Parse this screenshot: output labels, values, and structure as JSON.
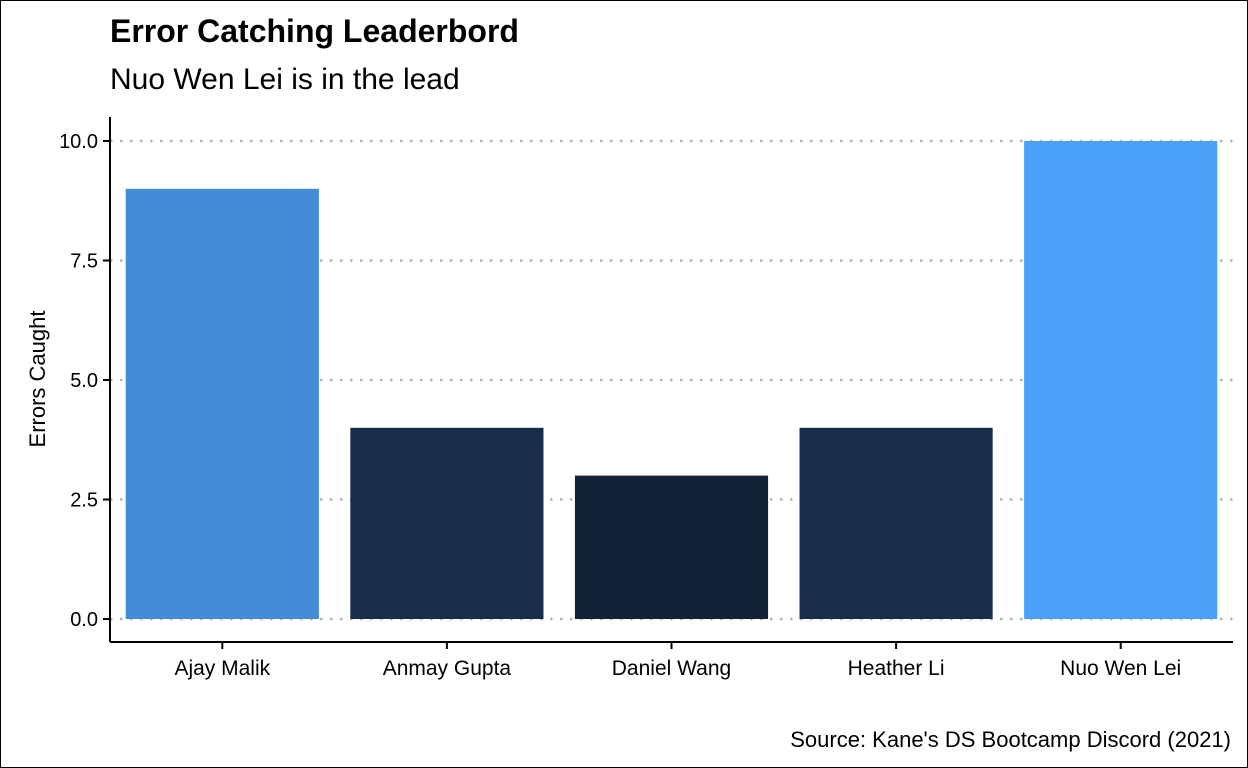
{
  "chart_data": {
    "type": "bar",
    "title": "Error Catching Leaderbord",
    "subtitle": "Nuo Wen Lei is in the lead",
    "caption": "Source: Kane's DS Bootcamp Discord (2021)",
    "xlabel": "",
    "ylabel": "Errors Caught",
    "categories": [
      "Ajay Malik",
      "Anmay Gupta",
      "Daniel Wang",
      "Heather Li",
      "Nuo Wen Lei"
    ],
    "values": [
      9,
      4,
      3,
      4,
      10
    ],
    "bar_colors": [
      "#428bd6",
      "#182d47",
      "#122133",
      "#182d47",
      "#4aa1f8"
    ],
    "ylim": [
      0,
      10
    ],
    "yticks": [
      0,
      2.5,
      5,
      7.5,
      10
    ],
    "ytick_labels": [
      "0.0",
      "2.5",
      "5.0",
      "7.5",
      "10.0"
    ],
    "grid": "horizontal dotted",
    "legend": "none"
  }
}
